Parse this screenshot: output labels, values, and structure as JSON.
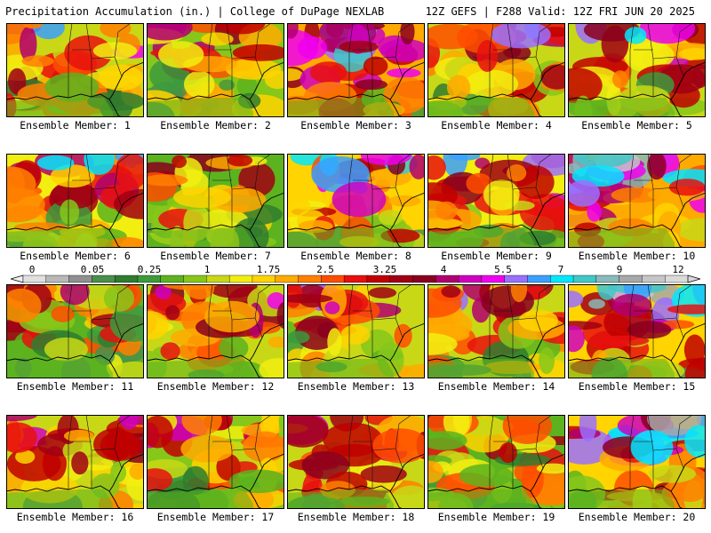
{
  "header": {
    "title": "Precipitation Accumulation (in.) | College of DuPage NEXLAB",
    "run_info": "12Z GEFS | F288 Valid: 12Z FRI JUN 20 2025"
  },
  "colorbar": {
    "tick_labels": [
      "0",
      "0.05",
      "0.25",
      "1",
      "1.75",
      "2.5",
      "3.25",
      "4",
      "5.5",
      "7",
      "9",
      "12"
    ],
    "colors": [
      "#e0e0e0",
      "#b8b8b8",
      "#909090",
      "#4a8f4a",
      "#2f7d2f",
      "#3d9a3d",
      "#5cb31f",
      "#86c71a",
      "#c8d816",
      "#f2ee10",
      "#ffd400",
      "#ffaa00",
      "#ff8000",
      "#ff4d00",
      "#e8100e",
      "#c00000",
      "#a00014",
      "#8a001e",
      "#b0006e",
      "#d000c0",
      "#f000f0",
      "#9a70ff",
      "#3aa0ff",
      "#00e8ff",
      "#40c8c8",
      "#8ababa",
      "#a8a8a8",
      "#c6c6c6",
      "#dadada"
    ]
  },
  "panels": [
    {
      "label": "Ensemble Member: 1",
      "seed": 11,
      "wet": 0.55
    },
    {
      "label": "Ensemble Member: 2",
      "seed": 23,
      "wet": 0.5
    },
    {
      "label": "Ensemble Member: 3",
      "seed": 37,
      "wet": 0.72
    },
    {
      "label": "Ensemble Member: 4",
      "seed": 41,
      "wet": 0.55
    },
    {
      "label": "Ensemble Member: 5",
      "seed": 53,
      "wet": 0.58
    },
    {
      "label": "Ensemble Member: 6",
      "seed": 67,
      "wet": 0.6
    },
    {
      "label": "Ensemble Member: 7",
      "seed": 71,
      "wet": 0.45
    },
    {
      "label": "Ensemble Member: 8",
      "seed": 83,
      "wet": 0.65
    },
    {
      "label": "Ensemble Member: 9",
      "seed": 97,
      "wet": 0.62
    },
    {
      "label": "Ensemble Member: 10",
      "seed": 101,
      "wet": 0.72
    },
    {
      "label": "Ensemble Member: 11",
      "seed": 113,
      "wet": 0.45
    },
    {
      "label": "Ensemble Member: 12",
      "seed": 127,
      "wet": 0.52
    },
    {
      "label": "Ensemble Member: 13",
      "seed": 131,
      "wet": 0.55
    },
    {
      "label": "Ensemble Member: 14",
      "seed": 149,
      "wet": 0.52
    },
    {
      "label": "Ensemble Member: 15",
      "seed": 157,
      "wet": 0.7
    },
    {
      "label": "Ensemble Member: 16",
      "seed": 163,
      "wet": 0.52
    },
    {
      "label": "Ensemble Member: 17",
      "seed": 173,
      "wet": 0.5
    },
    {
      "label": "Ensemble Member: 18",
      "seed": 181,
      "wet": 0.55
    },
    {
      "label": "Ensemble Member: 19",
      "seed": 191,
      "wet": 0.45
    },
    {
      "label": "Ensemble Member: 20",
      "seed": 199,
      "wet": 0.68
    }
  ]
}
